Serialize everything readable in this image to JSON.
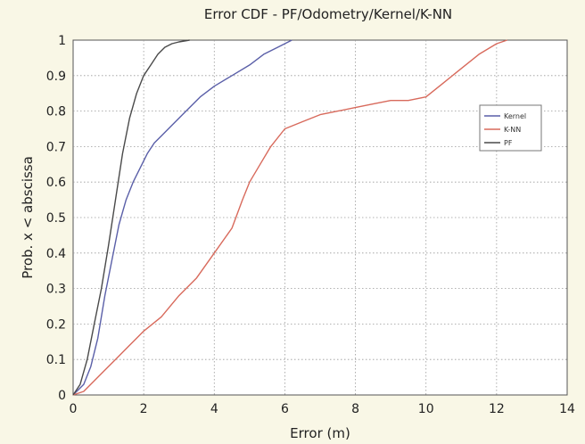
{
  "chart_data": {
    "type": "line",
    "title": "Error CDF - PF/Odometry/Kernel/K-NN",
    "xlabel": "Error (m)",
    "ylabel": "Prob. x < abscissa",
    "xlim": [
      0,
      14
    ],
    "ylim": [
      0,
      1
    ],
    "xticks": [
      "0",
      "2",
      "4",
      "6",
      "8",
      "10",
      "12",
      "14"
    ],
    "yticks": [
      "0",
      "0.1",
      "0.2",
      "0.3",
      "0.4",
      "0.5",
      "0.6",
      "0.7",
      "0.8",
      "0.9",
      "1"
    ],
    "grid": true,
    "legend_position": "right",
    "series": [
      {
        "name": "Kernel",
        "color": "#5a5fa8",
        "x": [
          0,
          0.3,
          0.5,
          0.7,
          0.9,
          1.1,
          1.3,
          1.5,
          1.7,
          1.9,
          2.1,
          2.3,
          2.5,
          2.8,
          3.2,
          3.6,
          4.0,
          4.5,
          5.0,
          5.4,
          5.8,
          6.2
        ],
        "y": [
          0,
          0.03,
          0.08,
          0.16,
          0.28,
          0.38,
          0.48,
          0.55,
          0.6,
          0.64,
          0.68,
          0.71,
          0.73,
          0.76,
          0.8,
          0.84,
          0.87,
          0.9,
          0.93,
          0.96,
          0.98,
          1.0
        ]
      },
      {
        "name": "K-NN",
        "color": "#d86a5c",
        "x": [
          0,
          0.3,
          0.6,
          0.9,
          1.2,
          1.6,
          2.0,
          2.5,
          3.0,
          3.5,
          4.0,
          4.5,
          4.8,
          5.0,
          5.3,
          5.6,
          6.0,
          6.5,
          7.0,
          7.5,
          8.0,
          8.5,
          9.0,
          9.5,
          10.0,
          10.5,
          11.0,
          11.5,
          12.0,
          12.3
        ],
        "y": [
          0,
          0.01,
          0.04,
          0.07,
          0.1,
          0.14,
          0.18,
          0.22,
          0.28,
          0.33,
          0.4,
          0.47,
          0.55,
          0.6,
          0.65,
          0.7,
          0.75,
          0.77,
          0.79,
          0.8,
          0.81,
          0.82,
          0.83,
          0.83,
          0.84,
          0.88,
          0.92,
          0.96,
          0.99,
          1.0
        ]
      },
      {
        "name": "PF",
        "color": "#4a4a4a",
        "x": [
          0,
          0.2,
          0.4,
          0.6,
          0.8,
          1.0,
          1.2,
          1.4,
          1.6,
          1.8,
          2.0,
          2.2,
          2.4,
          2.6,
          2.8,
          3.0,
          3.3
        ],
        "y": [
          0,
          0.03,
          0.1,
          0.2,
          0.3,
          0.42,
          0.55,
          0.68,
          0.78,
          0.85,
          0.9,
          0.93,
          0.96,
          0.98,
          0.99,
          0.995,
          1.0
        ]
      }
    ]
  }
}
